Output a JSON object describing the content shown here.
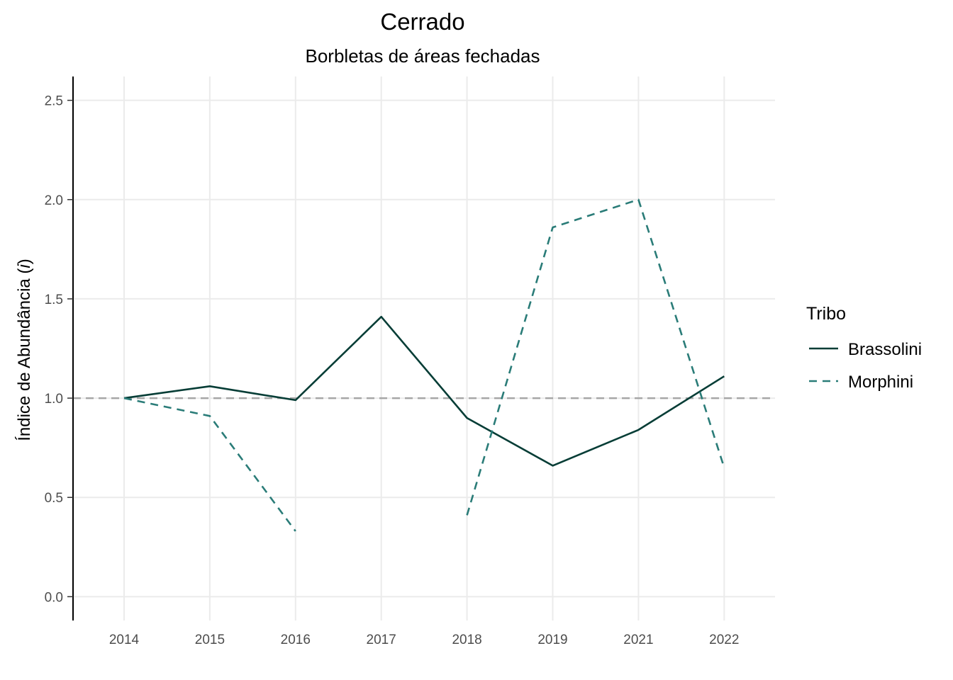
{
  "chart_data": {
    "type": "line",
    "title": "Cerrado",
    "subtitle": "Borbletas de áreas fechadas",
    "ylabel_main": "Índice de Abundância (",
    "ylabel_italic": "i",
    "ylabel_close": ")",
    "xlabel": "",
    "categories": [
      "2014",
      "2015",
      "2016",
      "2017",
      "2018",
      "2019",
      "2021",
      "2022"
    ],
    "ylim": [
      -0.12,
      2.62
    ],
    "yticks": [
      0.0,
      0.5,
      1.0,
      1.5,
      2.0,
      2.5
    ],
    "ytick_labels": [
      "0.0",
      "0.5",
      "1.0",
      "1.5",
      "2.0",
      "2.5"
    ],
    "reference_line": 1.0,
    "grid": true,
    "legend": {
      "title": "Tribo",
      "position": "right"
    },
    "series": [
      {
        "name": "Brassolini",
        "style": "solid",
        "color": "#063d36",
        "values": [
          1.0,
          1.06,
          0.99,
          1.41,
          0.9,
          0.66,
          0.84,
          1.11
        ]
      },
      {
        "name": "Morphini",
        "style": "dashed",
        "color": "#2a7c78",
        "values": [
          1.0,
          0.91,
          0.33,
          null,
          0.41,
          1.86,
          2.0,
          0.65
        ]
      }
    ],
    "colors": {
      "reference_line": "#a6a6a6",
      "grid": "#ebebeb",
      "axis": "#000000"
    }
  }
}
